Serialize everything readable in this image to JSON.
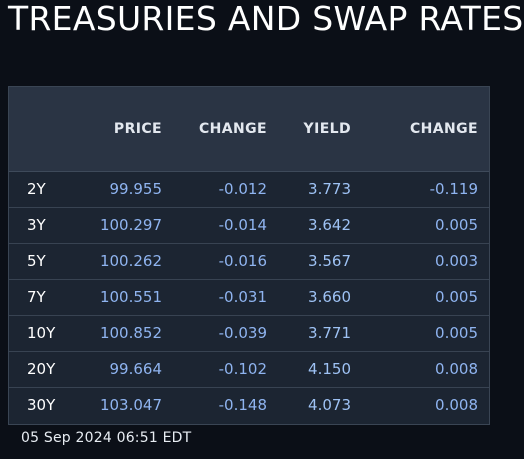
{
  "title": "TREASURIES AND SWAP RATES",
  "table": {
    "headers": {
      "tenor": "",
      "price": "PRICE",
      "price_change": "CHANGE",
      "yield": "YIELD",
      "yield_change": "CHANGE"
    },
    "rows": [
      {
        "tenor": "2Y",
        "price": "99.955",
        "price_change": "-0.012",
        "yield": "3.773",
        "yield_change": "-0.119"
      },
      {
        "tenor": "3Y",
        "price": "100.297",
        "price_change": "-0.014",
        "yield": "3.642",
        "yield_change": "0.005"
      },
      {
        "tenor": "5Y",
        "price": "100.262",
        "price_change": "-0.016",
        "yield": "3.567",
        "yield_change": "0.003"
      },
      {
        "tenor": "7Y",
        "price": "100.551",
        "price_change": "-0.031",
        "yield": "3.660",
        "yield_change": "0.005"
      },
      {
        "tenor": "10Y",
        "price": "100.852",
        "price_change": "-0.039",
        "yield": "3.771",
        "yield_change": "0.005"
      },
      {
        "tenor": "20Y",
        "price": "99.664",
        "price_change": "-0.102",
        "yield": "4.150",
        "yield_change": "0.008"
      },
      {
        "tenor": "30Y",
        "price": "103.047",
        "price_change": "-0.148",
        "yield": "4.073",
        "yield_change": "0.008"
      }
    ]
  },
  "timestamp": "05 Sep 2024 06:51 EDT",
  "colors": {
    "background": "#0b0f17",
    "table_body": "#1c2532",
    "table_header": "#2a3444",
    "value_text": "#8fb4f0",
    "tenor_text": "#ffffff"
  }
}
